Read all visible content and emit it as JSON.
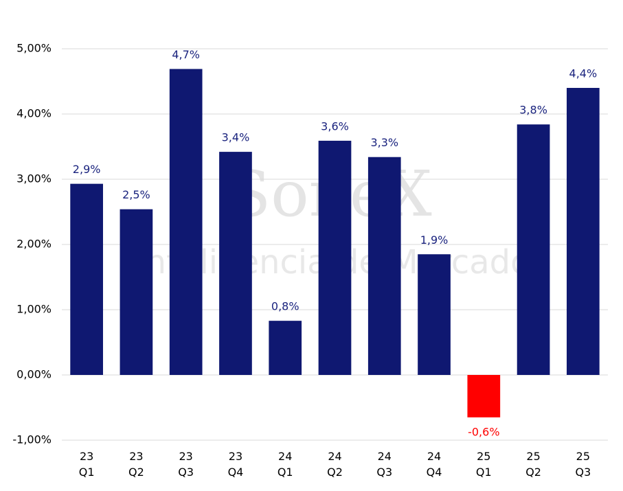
{
  "chart_data": {
    "type": "bar",
    "watermark": [
      "SoneX",
      "Inteligencia de Mercado"
    ],
    "categories": [
      "23 Q1",
      "23 Q2",
      "23 Q3",
      "23 Q4",
      "24 Q1",
      "24 Q2",
      "24 Q3",
      "24 Q4",
      "25 Q1",
      "25 Q2",
      "25 Q3"
    ],
    "values": [
      2.93,
      2.54,
      4.69,
      3.42,
      0.83,
      3.59,
      3.34,
      1.85,
      -0.65,
      3.84,
      4.4
    ],
    "value_labels": [
      "2,9%",
      "2,5%",
      "4,7%",
      "3,4%",
      "0,8%",
      "3,6%",
      "3,3%",
      "1,9%",
      "-0,6%",
      "3,8%",
      "4,4%"
    ],
    "colors": [
      "#0f1871",
      "#0f1871",
      "#0f1871",
      "#0f1871",
      "#0f1871",
      "#0f1871",
      "#0f1871",
      "#0f1871",
      "#ff0000",
      "#0f1871",
      "#0f1871"
    ],
    "ylim": [
      -1,
      5
    ],
    "yticks": [
      {
        "value": -1,
        "label": "-1,00%"
      },
      {
        "value": 0,
        "label": "0,00%"
      },
      {
        "value": 1,
        "label": "1,00%"
      },
      {
        "value": 2,
        "label": "2,00%"
      },
      {
        "value": 3,
        "label": "3,00%"
      },
      {
        "value": 4,
        "label": "4,00%"
      },
      {
        "value": 5,
        "label": "5,00%"
      }
    ],
    "grid": true
  }
}
